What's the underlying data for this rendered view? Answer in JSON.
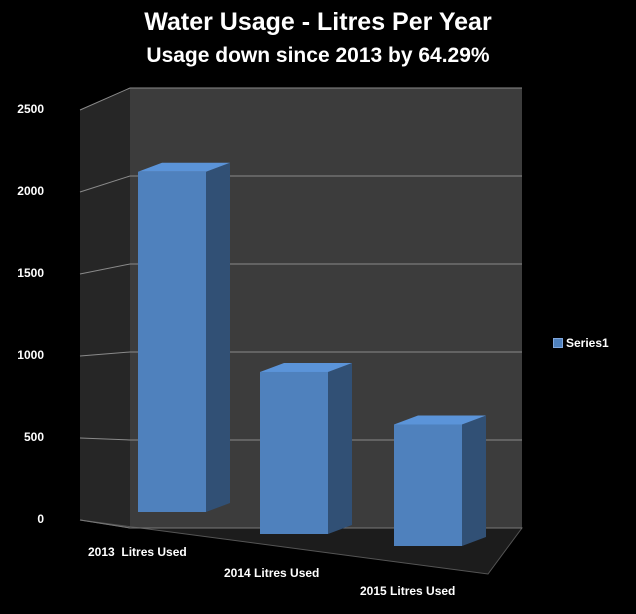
{
  "chart_data": {
    "type": "bar",
    "title": "Water Usage - Litres Per Year",
    "subtitle": "Usage down since 2013 by 64.29%",
    "categories": [
      "2013  Litres Used",
      "2014 Litres Used",
      "2015 Litres Used"
    ],
    "series": [
      {
        "name": "Series1",
        "values": [
          2100,
          1000,
          750
        ],
        "color": "#4f81bd"
      }
    ],
    "ylim": [
      0,
      2500
    ],
    "yticks": [
      "0",
      "500",
      "1000",
      "1500",
      "2000",
      "2500"
    ],
    "grid": true,
    "three_d": true,
    "legend_position": "right",
    "background": "#000000",
    "wall_color": "#3c3c3c",
    "text_color": "#ffffff"
  }
}
